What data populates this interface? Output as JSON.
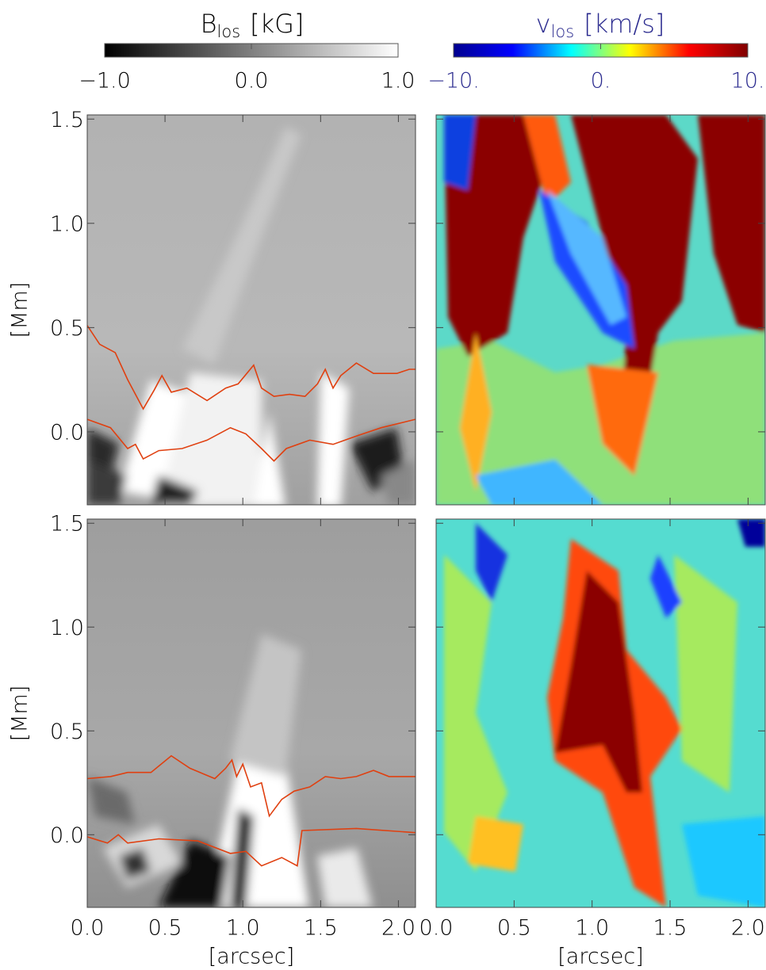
{
  "chart_data": [
    {
      "type": "colorbar",
      "title": "B",
      "title_subscript": "los",
      "unit": "[kG]",
      "text_color": "#000000",
      "colormap": [
        "#000000",
        "#ffffff"
      ],
      "xlim": [
        -1,
        1
      ],
      "xticks": [
        {
          "value": -1,
          "label": "−1.0"
        },
        {
          "value": 0,
          "label": "0.0"
        },
        {
          "value": 1,
          "label": "1.0"
        }
      ]
    },
    {
      "type": "colorbar",
      "title": "v",
      "title_subscript": "los",
      "unit": "[km/s]",
      "text_color": "#2b2b8f",
      "colormap": [
        "#00008f",
        "#0000ff",
        "#00ffff",
        "#ffff00",
        "#ff0000",
        "#800000"
      ],
      "xlim": [
        -10,
        10
      ],
      "xticks": [
        {
          "value": -10,
          "label": "−10."
        },
        {
          "value": 0,
          "label": "0."
        },
        {
          "value": 10,
          "label": "10."
        }
      ]
    },
    {
      "type": "heatmap",
      "ylabel": "[Mm]",
      "xlim": [
        0,
        2.11
      ],
      "ylim": [
        -0.35,
        1.52
      ],
      "xticks": [
        {
          "value": 0,
          "label": "0.0"
        },
        0.5,
        {
          "value": 1,
          "label": "1.0"
        },
        1.5,
        {
          "value": 2,
          "label": "2.0"
        }
      ],
      "yticks": [
        {
          "value": 0,
          "label": "0.0"
        },
        0.5,
        {
          "value": 1,
          "label": "1.0"
        },
        1.5
      ],
      "xtick_labels": false,
      "ytick_labels": true,
      "series": [
        {
          "color": "#e04010",
          "x": [
            0,
            0.08,
            0.18,
            0.26,
            0.36,
            0.43,
            0.48,
            0.54,
            0.64,
            0.77,
            0.89,
            0.97,
            1.07,
            1.12,
            1.2,
            1.3,
            1.4,
            1.48,
            1.53,
            1.58,
            1.63,
            1.73,
            1.84,
            1.99,
            2.07,
            2.11
          ],
          "values": [
            0.51,
            0.42,
            0.38,
            0.25,
            0.11,
            0.2,
            0.27,
            0.19,
            0.21,
            0.15,
            0.21,
            0.23,
            0.32,
            0.21,
            0.17,
            0.18,
            0.17,
            0.23,
            0.3,
            0.21,
            0.27,
            0.33,
            0.28,
            0.28,
            0.3,
            0.3
          ]
        },
        {
          "color": "#e04010",
          "x": [
            0,
            0.15,
            0.26,
            0.31,
            0.36,
            0.46,
            0.61,
            0.77,
            0.92,
            1.02,
            1.12,
            1.2,
            1.28,
            1.43,
            1.58,
            1.73,
            1.89,
            2.11
          ],
          "values": [
            0.06,
            0.02,
            -0.08,
            -0.06,
            -0.13,
            -0.09,
            -0.08,
            -0.04,
            0.02,
            -0.01,
            -0.08,
            -0.14,
            -0.08,
            -0.04,
            -0.06,
            -0.02,
            0.02,
            0.06
          ]
        }
      ]
    },
    {
      "type": "heatmap",
      "xlim": [
        0,
        2.11
      ],
      "ylim": [
        -0.35,
        1.52
      ],
      "xticks": [
        {
          "value": 0,
          "label": "0.0"
        },
        0.5,
        {
          "value": 1,
          "label": "1.0"
        },
        1.5,
        {
          "value": 2,
          "label": "2.0"
        }
      ],
      "yticks": [
        {
          "value": 0,
          "label": "0.0"
        },
        0.5,
        {
          "value": 1,
          "label": "1.0"
        },
        1.5
      ],
      "xtick_labels": false,
      "ytick_labels": false,
      "series": []
    },
    {
      "type": "heatmap",
      "ylabel": "[Mm]",
      "xlabel": "[arcsec]",
      "xlim": [
        0,
        2.11
      ],
      "ylim": [
        -0.35,
        1.52
      ],
      "xticks": [
        {
          "value": 0,
          "label": "0.0"
        },
        0.5,
        {
          "value": 1,
          "label": "1.0"
        },
        1.5,
        {
          "value": 2,
          "label": "2.0"
        }
      ],
      "yticks": [
        {
          "value": 0,
          "label": "0.0"
        },
        0.5,
        {
          "value": 1,
          "label": "1.0"
        },
        1.5
      ],
      "xtick_labels": true,
      "ytick_labels": true,
      "series": [
        {
          "color": "#e04010",
          "x": [
            0,
            0.15,
            0.26,
            0.41,
            0.54,
            0.66,
            0.82,
            0.89,
            0.93,
            0.96,
            1.0,
            1.05,
            1.12,
            1.17,
            1.25,
            1.33,
            1.43,
            1.53,
            1.63,
            1.73,
            1.84,
            1.94,
            2.11
          ],
          "values": [
            0.27,
            0.28,
            0.3,
            0.3,
            0.38,
            0.32,
            0.27,
            0.32,
            0.36,
            0.28,
            0.34,
            0.23,
            0.25,
            0.09,
            0.17,
            0.21,
            0.23,
            0.28,
            0.27,
            0.28,
            0.31,
            0.28,
            0.28
          ]
        },
        {
          "color": "#e04010",
          "x": [
            0,
            0.13,
            0.2,
            0.26,
            0.46,
            0.71,
            0.92,
            1.02,
            1.12,
            1.25,
            1.35,
            1.38,
            1.73,
            2.11
          ],
          "values": [
            -0.01,
            -0.04,
            0,
            -0.04,
            -0.02,
            -0.03,
            -0.09,
            -0.08,
            -0.15,
            -0.11,
            -0.15,
            0.02,
            0.03,
            0.01
          ]
        }
      ]
    },
    {
      "type": "heatmap",
      "xlabel": "[arcsec]",
      "xlim": [
        0,
        2.11
      ],
      "ylim": [
        -0.35,
        1.52
      ],
      "xticks": [
        {
          "value": 0,
          "label": "0.0"
        },
        0.5,
        {
          "value": 1,
          "label": "1.0"
        },
        1.5,
        {
          "value": 2,
          "label": "2.0"
        }
      ],
      "yticks": [
        {
          "value": 0,
          "label": "0.0"
        },
        0.5,
        {
          "value": 1,
          "label": "1.0"
        },
        1.5
      ],
      "xtick_labels": true,
      "ytick_labels": false,
      "series": []
    }
  ]
}
